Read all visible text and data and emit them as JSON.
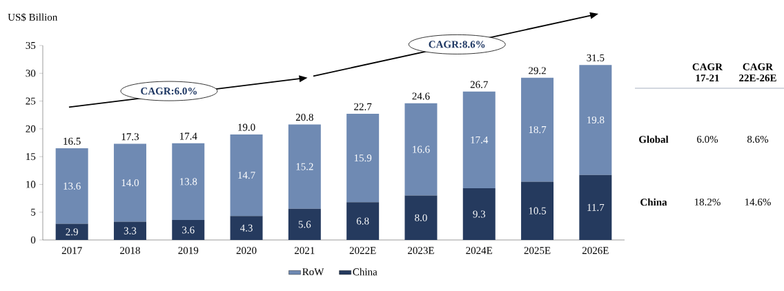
{
  "chart_data": {
    "type": "bar",
    "stacked": true,
    "ylabel": "US$ Billion",
    "categories": [
      "2017",
      "2018",
      "2019",
      "2020",
      "2021",
      "2022E",
      "2023E",
      "2024E",
      "2025E",
      "2026E"
    ],
    "series": [
      {
        "name": "China",
        "color": "#253a5e",
        "values": [
          2.9,
          3.3,
          3.6,
          4.3,
          5.6,
          6.8,
          8.0,
          9.3,
          10.5,
          11.7
        ],
        "value_labels": [
          "2.9",
          "3.3",
          "3.6",
          "4.3",
          "5.6",
          "6.8",
          "8.0",
          "9.3",
          "10.5",
          "11.7"
        ]
      },
      {
        "name": "RoW",
        "color": "#6f8ab3",
        "values": [
          13.6,
          14.0,
          13.8,
          14.7,
          15.2,
          15.9,
          16.6,
          17.4,
          18.7,
          19.8
        ],
        "value_labels": [
          "13.6",
          "14.0",
          "13.8",
          "14.7",
          "15.2",
          "15.9",
          "16.6",
          "17.4",
          "18.7",
          "19.8"
        ]
      }
    ],
    "totals": [
      "16.5",
      "17.3",
      "17.4",
      "19.0",
      "20.8",
      "22.7",
      "24.6",
      "26.7",
      "29.2",
      "31.5"
    ],
    "ylim": [
      0,
      35
    ],
    "yticks": [
      0,
      5,
      10,
      15,
      20,
      25,
      30,
      35
    ],
    "grid": false,
    "legend": "bottom",
    "annotations": [
      "CAGR:6.0%",
      "CAGR:8.6%",
      "CAGR 17-21",
      "CAGR 22E-26E",
      "Global",
      "6.0%",
      "8.6%",
      "China",
      "18.2%",
      "14.6%"
    ]
  }
}
